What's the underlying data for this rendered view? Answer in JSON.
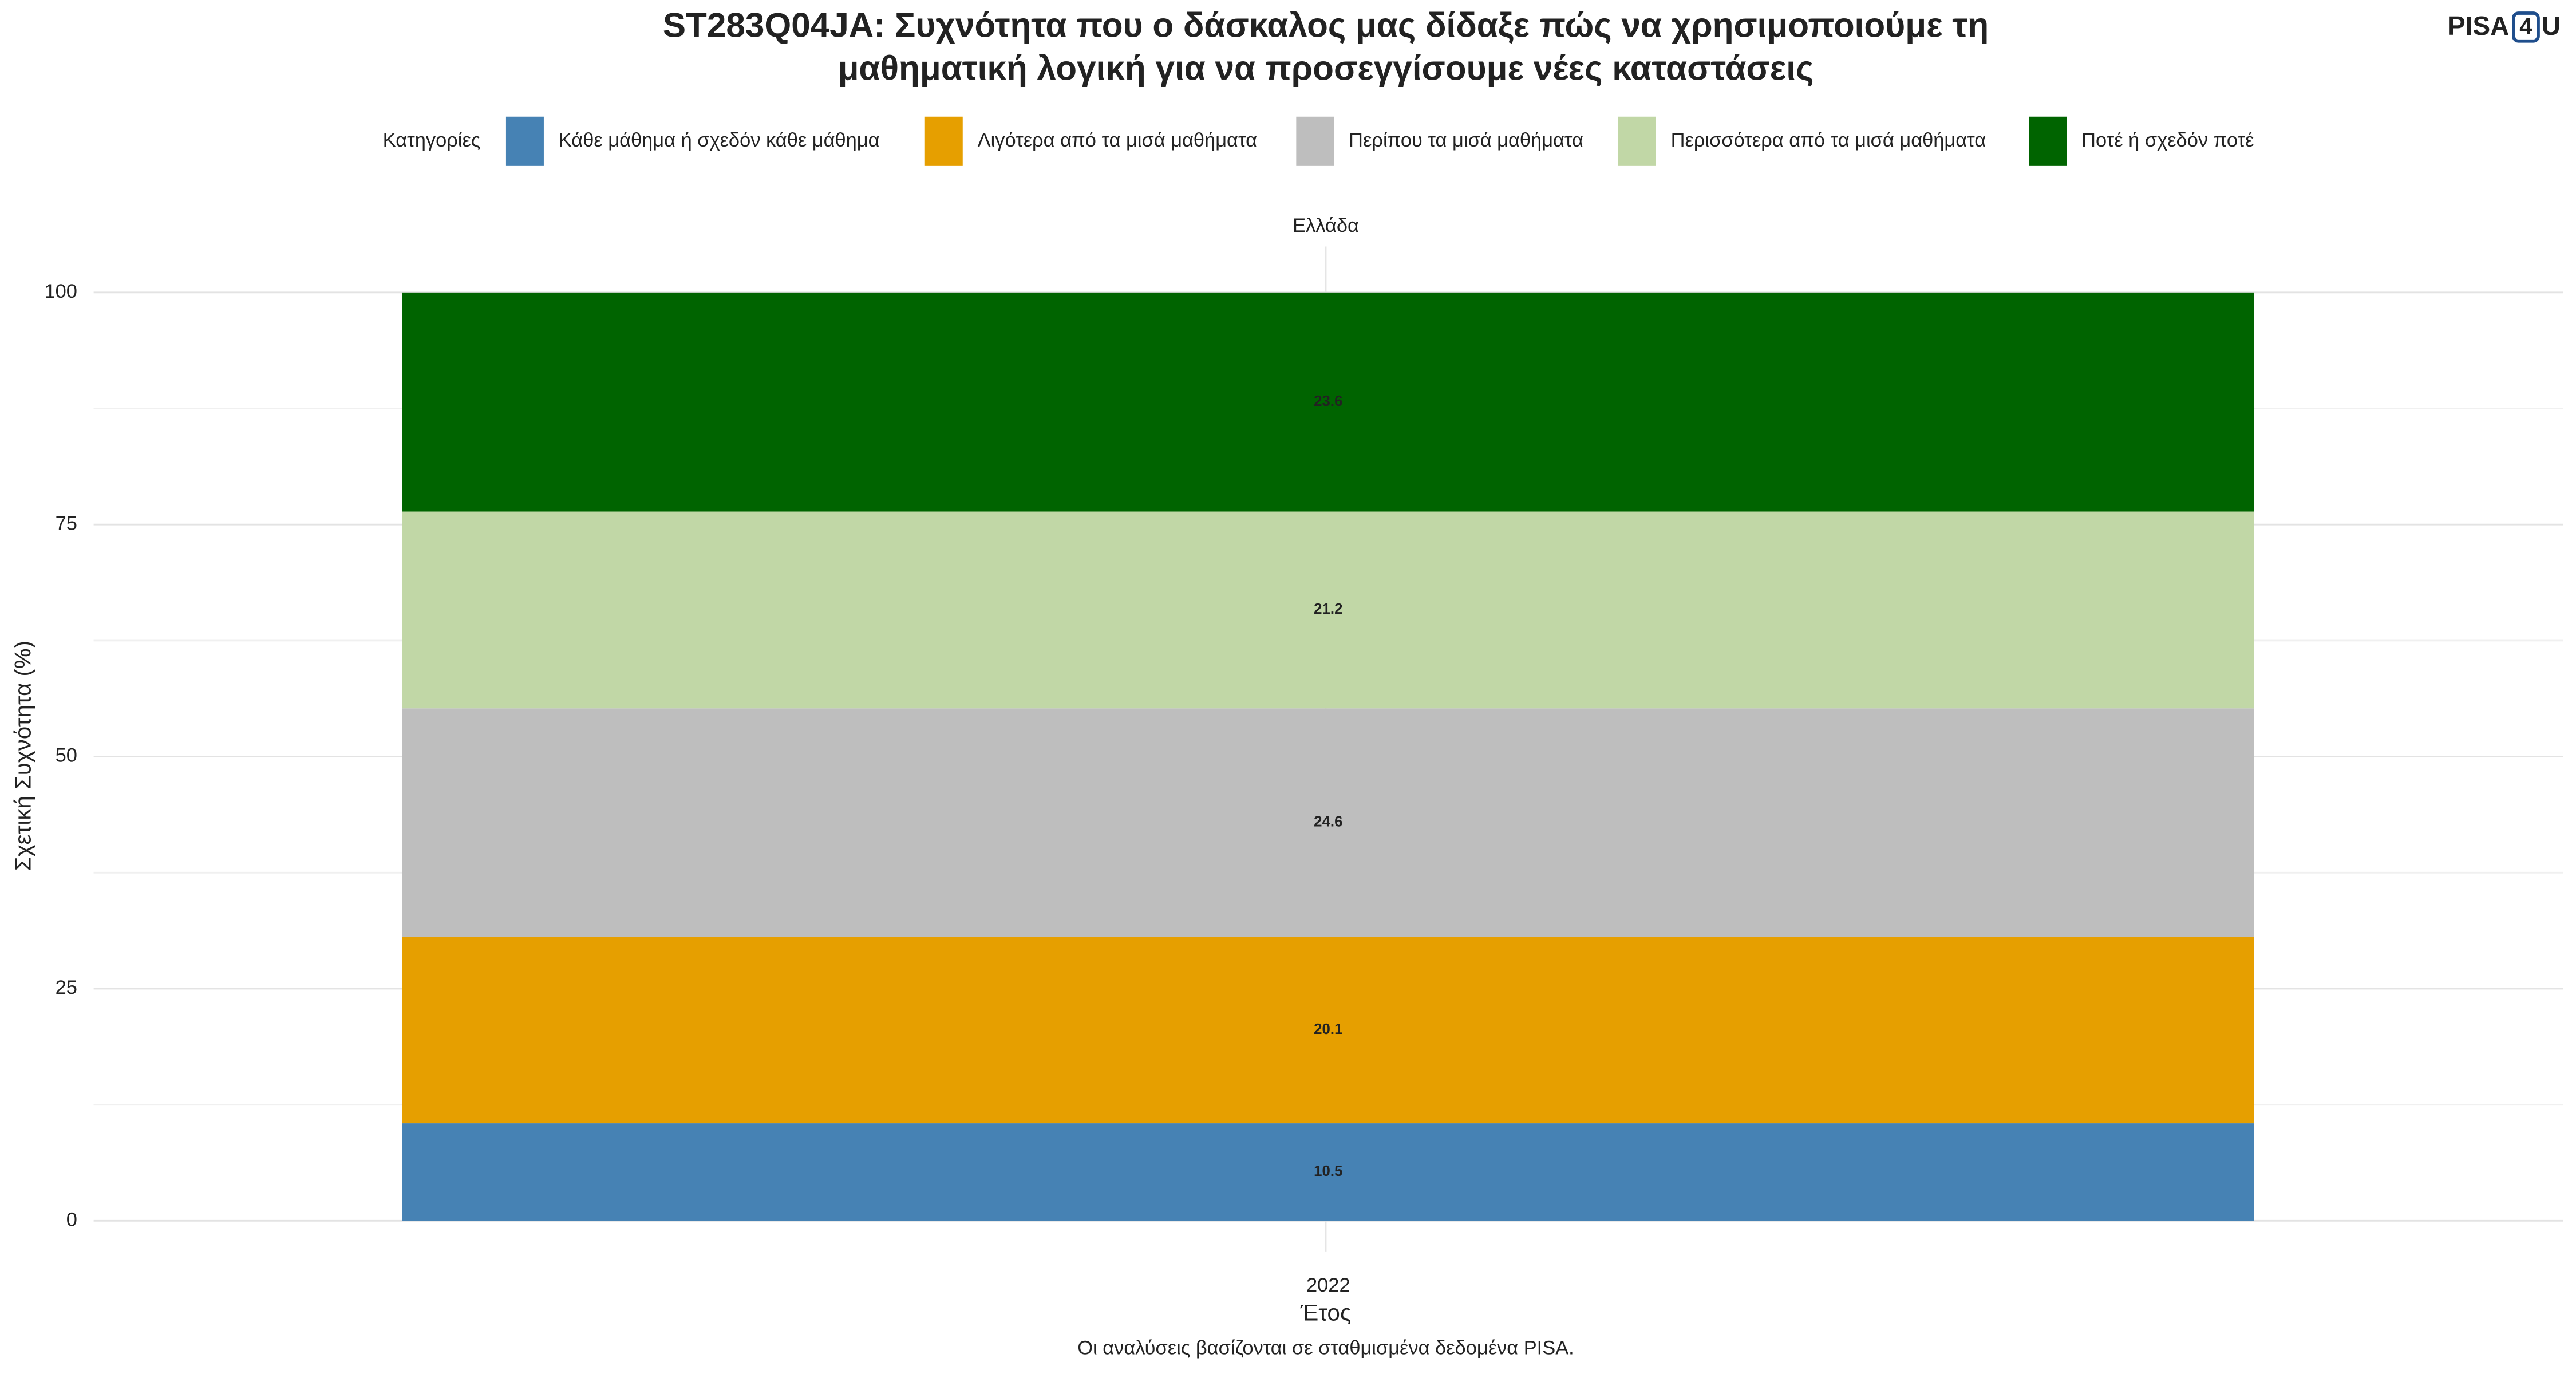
{
  "chart_data": {
    "type": "stacked_bar",
    "title": [
      "ST283Q04JA: Συχνότητα που ο δάσκαλος μας δίδαξε πώς να χρησιμοποιούμε τη",
      "μαθηματική λογική για να προσεγγίσουμε νέες καταστάσεις"
    ],
    "legend_title": "Κατηγορίες",
    "facet": "Ελλάδα",
    "categories": [
      "2022"
    ],
    "series": [
      {
        "name": "Κάθε μάθημα ή σχεδόν κάθε μάθημα",
        "color": "#4682b4",
        "values": [
          10.5
        ]
      },
      {
        "name": "Λιγότερα από τα μισά μαθήματα",
        "color": "#e69f00",
        "values": [
          20.1
        ]
      },
      {
        "name": "Περίπου τα μισά μαθήματα",
        "color": "#bebebe",
        "values": [
          24.6
        ]
      },
      {
        "name": "Περισσότερα από τα μισά μαθήματα",
        "color": "#c1d7a6",
        "values": [
          21.2
        ]
      },
      {
        "name": "Ποτέ ή σχεδόν ποτέ",
        "color": "#006400",
        "values": [
          23.6
        ]
      }
    ],
    "ylim": [
      0,
      100
    ],
    "yticks": [
      0,
      25,
      50,
      75,
      100
    ],
    "minor_yticks": [
      12.5,
      37.5,
      62.5,
      87.5
    ],
    "grid": true,
    "x_label": "Έτος",
    "y_label": "Σχετική Συχνότητα (%)",
    "caption": "Οι αναλύσεις βασίζονται σε σταθμισμένα δεδομένα PISA."
  },
  "logo": {
    "part1": "PISA",
    "part2": "4",
    "part3": "U"
  }
}
